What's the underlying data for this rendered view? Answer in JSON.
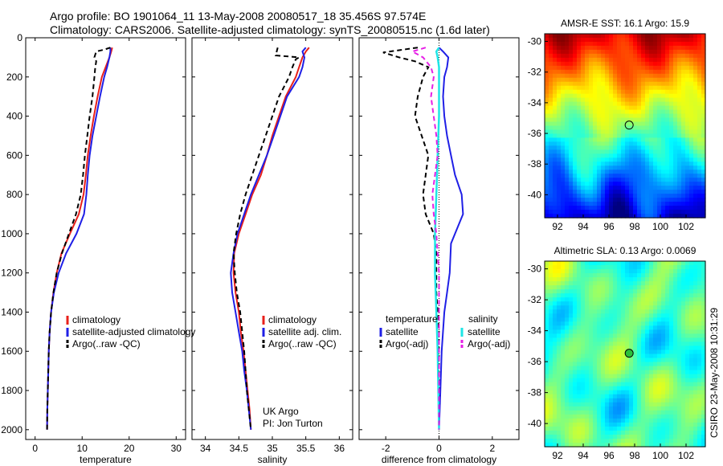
{
  "header": {
    "line1": "Argo profile: BO 1901064_11 13-May-2008 20080517_18 35.456S 97.574E",
    "line2": "Climatology: CARS2006. Satellite-adjusted climatology: synTS_20080515.nc (1.6d later)"
  },
  "colors": {
    "climatology": "#e8201b",
    "satellite": "#1f1fe6",
    "argo": "#000000",
    "salinity_satellite": "#1ee6e6",
    "salinity_argo": "#e61fe6"
  },
  "side_text": "CSIRO 23-May-2008 10:31:29",
  "chart_data": [
    {
      "type": "line",
      "xlabel": "temperature",
      "xlim": [
        -2,
        32
      ],
      "xticks": [
        "0",
        "10",
        "20",
        "30"
      ],
      "ylim": [
        2050,
        0
      ],
      "yticks": [
        "0",
        "200",
        "400",
        "600",
        "800",
        "1000",
        "1200",
        "1400",
        "1600",
        "1800",
        "2000"
      ],
      "legend": [
        "climatology",
        "satellite-adjusted climatology",
        "Argo(..raw -QC)"
      ],
      "series": [
        {
          "name": "climatology",
          "color": "red",
          "dash": false,
          "points": [
            [
              16.4,
              50
            ],
            [
              16.2,
              70
            ],
            [
              15.8,
              100
            ],
            [
              15.0,
              150
            ],
            [
              14.2,
              200
            ],
            [
              13.3,
              300
            ],
            [
              12.5,
              400
            ],
            [
              11.8,
              500
            ],
            [
              11.2,
              600
            ],
            [
              10.8,
              700
            ],
            [
              10.3,
              800
            ],
            [
              9.3,
              900
            ],
            [
              7.4,
              1000
            ],
            [
              5.6,
              1100
            ],
            [
              4.6,
              1200
            ],
            [
              3.9,
              1300
            ],
            [
              3.4,
              1400
            ],
            [
              3.1,
              1500
            ],
            [
              2.9,
              1600
            ],
            [
              2.8,
              1700
            ],
            [
              2.7,
              1800
            ],
            [
              2.6,
              1900
            ],
            [
              2.55,
              2000
            ]
          ]
        },
        {
          "name": "satellite-adjusted climatology",
          "color": "blue",
          "dash": false,
          "points": [
            [
              16.0,
              50
            ],
            [
              16.0,
              70
            ],
            [
              15.8,
              100
            ],
            [
              15.3,
              150
            ],
            [
              14.7,
              200
            ],
            [
              13.8,
              300
            ],
            [
              13.0,
              400
            ],
            [
              12.2,
              500
            ],
            [
              11.6,
              600
            ],
            [
              11.2,
              700
            ],
            [
              10.9,
              800
            ],
            [
              10.4,
              900
            ],
            [
              8.8,
              1000
            ],
            [
              6.6,
              1100
            ],
            [
              5.0,
              1200
            ],
            [
              4.0,
              1300
            ],
            [
              3.4,
              1400
            ],
            [
              3.1,
              1500
            ],
            [
              2.9,
              1600
            ],
            [
              2.8,
              1700
            ],
            [
              2.7,
              1800
            ],
            [
              2.6,
              1900
            ],
            [
              2.55,
              2000
            ]
          ]
        },
        {
          "name": "Argo(..raw -QC)",
          "color": "black",
          "dash": true,
          "points": [
            [
              16.0,
              50
            ],
            [
              14.8,
              60
            ],
            [
              13.0,
              70
            ],
            [
              12.6,
              100
            ],
            [
              13.0,
              120
            ],
            [
              12.8,
              150
            ],
            [
              12.6,
              200
            ],
            [
              12.2,
              300
            ],
            [
              11.6,
              400
            ],
            [
              11.1,
              500
            ],
            [
              10.6,
              600
            ],
            [
              10.2,
              700
            ],
            [
              9.7,
              800
            ],
            [
              8.7,
              900
            ],
            [
              7.2,
              1000
            ],
            [
              5.7,
              1100
            ],
            [
              4.6,
              1200
            ],
            [
              3.9,
              1300
            ],
            [
              3.4,
              1400
            ],
            [
              3.1,
              1500
            ],
            [
              2.9,
              1600
            ],
            [
              2.8,
              1700
            ],
            [
              2.7,
              1800
            ],
            [
              2.6,
              1900
            ],
            [
              2.55,
              2000
            ]
          ]
        }
      ]
    },
    {
      "type": "line",
      "xlabel": "salinity",
      "xlim": [
        33.8,
        36.2
      ],
      "xticks": [
        "34",
        "34.5",
        "35",
        "35.5",
        "36"
      ],
      "ylim": [
        2050,
        0
      ],
      "legend": [
        "climatology",
        "satellite adj. clim.",
        "Argo(..raw -QC)"
      ],
      "annotation": [
        "UK Argo",
        "PI: Jon Turton"
      ],
      "series": [
        {
          "name": "climatology",
          "color": "red",
          "dash": false,
          "points": [
            [
              35.55,
              50
            ],
            [
              35.5,
              70
            ],
            [
              35.45,
              100
            ],
            [
              35.4,
              150
            ],
            [
              35.35,
              200
            ],
            [
              35.2,
              300
            ],
            [
              35.1,
              400
            ],
            [
              35.0,
              500
            ],
            [
              34.92,
              600
            ],
            [
              34.83,
              700
            ],
            [
              34.7,
              800
            ],
            [
              34.6,
              900
            ],
            [
              34.5,
              1000
            ],
            [
              34.43,
              1100
            ],
            [
              34.42,
              1200
            ],
            [
              34.45,
              1300
            ],
            [
              34.5,
              1400
            ],
            [
              34.53,
              1500
            ],
            [
              34.57,
              1600
            ],
            [
              34.6,
              1700
            ],
            [
              34.63,
              1800
            ],
            [
              34.66,
              1900
            ],
            [
              34.68,
              2000
            ]
          ]
        },
        {
          "name": "satellite adj. clim.",
          "color": "blue",
          "dash": false,
          "points": [
            [
              35.5,
              50
            ],
            [
              35.45,
              70
            ],
            [
              35.48,
              100
            ],
            [
              35.45,
              150
            ],
            [
              35.4,
              200
            ],
            [
              35.22,
              300
            ],
            [
              35.12,
              400
            ],
            [
              35.02,
              500
            ],
            [
              34.92,
              600
            ],
            [
              34.8,
              700
            ],
            [
              34.68,
              800
            ],
            [
              34.58,
              900
            ],
            [
              34.48,
              1000
            ],
            [
              34.42,
              1100
            ],
            [
              34.38,
              1200
            ],
            [
              34.4,
              1300
            ],
            [
              34.45,
              1400
            ],
            [
              34.5,
              1500
            ],
            [
              34.55,
              1600
            ],
            [
              34.58,
              1700
            ],
            [
              34.62,
              1800
            ],
            [
              34.65,
              1900
            ],
            [
              34.68,
              2000
            ]
          ]
        },
        {
          "name": "Argo(..raw -QC)",
          "color": "black",
          "dash": true,
          "points": [
            [
              35.08,
              50
            ],
            [
              35.05,
              90
            ],
            [
              35.4,
              100
            ],
            [
              35.35,
              110
            ],
            [
              35.3,
              150
            ],
            [
              35.25,
              200
            ],
            [
              35.1,
              300
            ],
            [
              35.0,
              400
            ],
            [
              34.9,
              500
            ],
            [
              34.8,
              600
            ],
            [
              34.7,
              700
            ],
            [
              34.6,
              800
            ],
            [
              34.52,
              900
            ],
            [
              34.46,
              1000
            ],
            [
              34.42,
              1100
            ],
            [
              34.44,
              1200
            ],
            [
              34.47,
              1300
            ],
            [
              34.52,
              1400
            ],
            [
              34.55,
              1500
            ],
            [
              34.58,
              1600
            ],
            [
              34.6,
              1700
            ],
            [
              34.62,
              1800
            ],
            [
              34.65,
              1900
            ],
            [
              34.68,
              2000
            ]
          ]
        }
      ]
    },
    {
      "type": "line",
      "xlabel": "difference from climatology",
      "xlim": [
        -3,
        3
      ],
      "xticks": [
        "-2",
        "0",
        "2"
      ],
      "ylim": [
        2050,
        0
      ],
      "legend_left": {
        "title": "temperature",
        "items": [
          "satellite",
          "Argo(-adj)"
        ]
      },
      "legend_right": {
        "title": "salinity",
        "items": [
          "satellite",
          "Argo(-adj)"
        ]
      },
      "series": [
        {
          "name": "temperature satellite",
          "color": "blue",
          "dash": false,
          "points": [
            [
              0,
              50
            ],
            [
              0.15,
              70
            ],
            [
              0.35,
              100
            ],
            [
              0.3,
              150
            ],
            [
              0.2,
              200
            ],
            [
              0.15,
              300
            ],
            [
              0.2,
              400
            ],
            [
              0.3,
              500
            ],
            [
              0.45,
              600
            ],
            [
              0.6,
              700
            ],
            [
              0.85,
              800
            ],
            [
              0.9,
              900
            ],
            [
              0.6,
              1000
            ],
            [
              0.45,
              1050
            ],
            [
              0.4,
              1200
            ],
            [
              0.3,
              1300
            ],
            [
              0.2,
              1400
            ],
            [
              0.1,
              1600
            ],
            [
              0.05,
              1800
            ],
            [
              0,
              2000
            ]
          ]
        },
        {
          "name": "temperature Argo(-adj)",
          "color": "black",
          "dash": true,
          "points": [
            [
              -0.8,
              50
            ],
            [
              -2.1,
              75
            ],
            [
              -1.5,
              100
            ],
            [
              -0.9,
              120
            ],
            [
              -0.4,
              150
            ],
            [
              -0.6,
              200
            ],
            [
              -0.8,
              300
            ],
            [
              -0.9,
              400
            ],
            [
              -0.4,
              600
            ],
            [
              -0.5,
              700
            ],
            [
              -0.6,
              800
            ],
            [
              -0.5,
              900
            ],
            [
              -0.2,
              1000
            ],
            [
              -0.1,
              1100
            ],
            [
              -0.1,
              1300
            ],
            [
              0,
              1500
            ],
            [
              0,
              1800
            ],
            [
              0,
              2000
            ]
          ]
        },
        {
          "name": "salinity satellite",
          "color": "cyan",
          "dash": false,
          "points": [
            [
              0,
              50
            ],
            [
              -0.1,
              70
            ],
            [
              -0.05,
              100
            ],
            [
              0,
              150
            ],
            [
              0,
              200
            ],
            [
              0,
              400
            ],
            [
              -0.05,
              600
            ],
            [
              -0.1,
              800
            ],
            [
              -0.15,
              1000
            ],
            [
              -0.15,
              1200
            ],
            [
              -0.1,
              1400
            ],
            [
              -0.05,
              1600
            ],
            [
              0,
              2000
            ]
          ]
        },
        {
          "name": "salinity Argo(-adj)",
          "color": "magenta",
          "dash": true,
          "points": [
            [
              -0.5,
              50
            ],
            [
              -1.0,
              70
            ],
            [
              -0.6,
              100
            ],
            [
              -0.3,
              150
            ],
            [
              -0.2,
              200
            ],
            [
              -0.3,
              300
            ],
            [
              -0.1,
              500
            ],
            [
              -0.05,
              600
            ],
            [
              -0.25,
              800
            ],
            [
              -0.2,
              900
            ],
            [
              -0.1,
              1000
            ],
            [
              0,
              1200
            ],
            [
              0,
              1500
            ],
            [
              0,
              2000
            ]
          ]
        }
      ]
    },
    {
      "type": "heatmap",
      "title": "AMSR-E SST: 16.1 Argo: 15.9",
      "xticks": [
        "92",
        "94",
        "96",
        "98",
        "100",
        "102"
      ],
      "yticks": [
        "-30",
        "-32",
        "-34",
        "-36",
        "-38",
        "-40"
      ],
      "xlim": [
        91,
        103.5
      ],
      "ylim": [
        -41.5,
        -29.5
      ],
      "argo_position": [
        97.574,
        -35.456
      ],
      "colormap": "jet"
    },
    {
      "type": "heatmap",
      "title": "Altimetric SLA: 0.13 Argo: 0.0069",
      "xticks": [
        "92",
        "94",
        "96",
        "98",
        "100",
        "102"
      ],
      "yticks": [
        "-30",
        "-32",
        "-34",
        "-36",
        "-38",
        "-40"
      ],
      "xlim": [
        91,
        103.5
      ],
      "ylim": [
        -41.5,
        -29.5
      ],
      "argo_position": [
        97.574,
        -35.456
      ],
      "colormap": "jet"
    }
  ]
}
